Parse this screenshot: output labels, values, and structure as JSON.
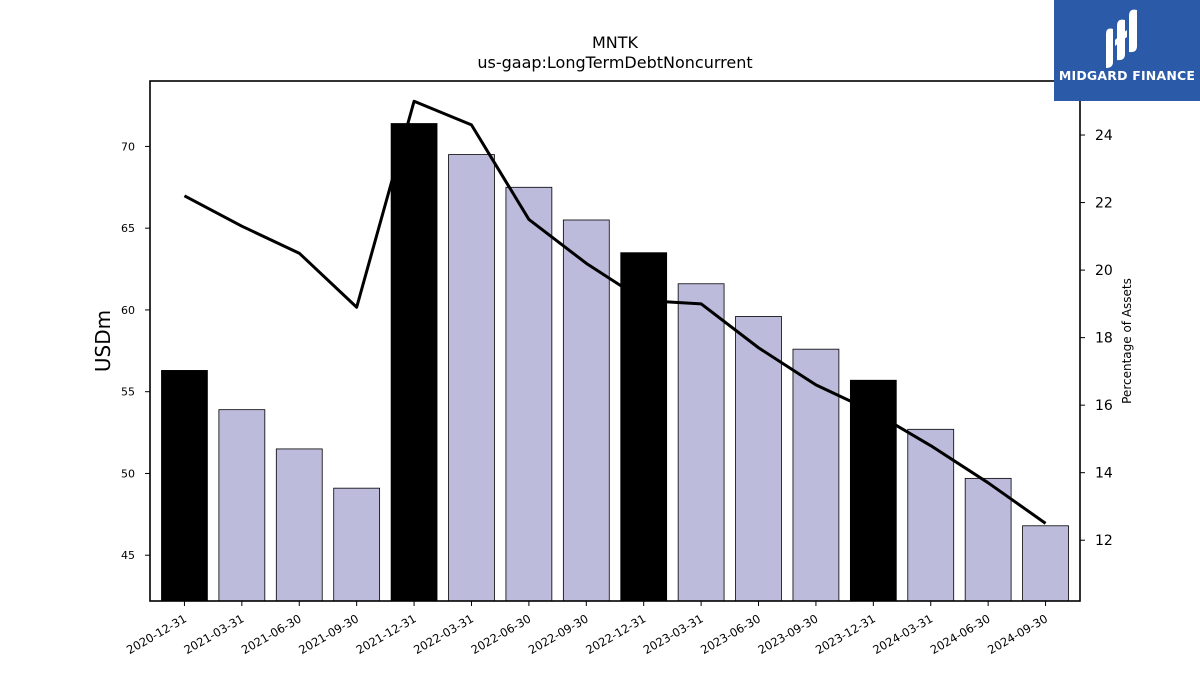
{
  "chart_data": {
    "type": "bar",
    "title": "MNTK",
    "subtitle": "us-gaap:LongTermDebtNoncurrent",
    "ylabel": "USDm",
    "y2label": "Percentage of Assets",
    "categories": [
      "2020-12-31",
      "2021-03-31",
      "2021-06-30",
      "2021-09-30",
      "2021-12-31",
      "2022-03-31",
      "2022-06-30",
      "2022-09-30",
      "2022-12-31",
      "2023-03-31",
      "2023-06-30",
      "2023-09-30",
      "2023-12-31",
      "2024-03-31",
      "2024-06-30",
      "2024-09-30"
    ],
    "series": [
      {
        "kind": "bar",
        "values": [
          56.3,
          53.9,
          51.5,
          49.1,
          71.4,
          69.5,
          67.5,
          65.5,
          63.5,
          61.6,
          59.6,
          57.6,
          55.7,
          52.7,
          49.7,
          46.8
        ],
        "colors": [
          "#000000",
          "#bdbbdb",
          "#bdbbdb",
          "#bdbbdb",
          "#000000",
          "#bdbbdb",
          "#bdbbdb",
          "#bdbbdb",
          "#000000",
          "#bdbbdb",
          "#bdbbdb",
          "#bdbbdb",
          "#000000",
          "#bdbbdb",
          "#bdbbdb",
          "#bdbbdb"
        ],
        "axis": "left"
      },
      {
        "kind": "line",
        "values": [
          22.2,
          21.3,
          20.5,
          18.9,
          25.0,
          24.3,
          21.5,
          20.2,
          19.1,
          19.0,
          17.7,
          16.6,
          15.8,
          14.8,
          13.7,
          12.5
        ],
        "color": "#000000",
        "axis": "right"
      }
    ],
    "ylim": [
      42.2,
      74.0
    ],
    "y2lim": [
      10.2,
      25.6
    ],
    "yticks": [
      45,
      50,
      55,
      60,
      65,
      70
    ],
    "y2ticks": [
      12,
      14,
      16,
      18,
      20,
      22,
      24
    ],
    "grid": false,
    "legend": "none"
  },
  "logo": {
    "text": "MIDGARD FINANCE",
    "icon": "midgard-logo-icon",
    "color": "#2b5aa8"
  }
}
